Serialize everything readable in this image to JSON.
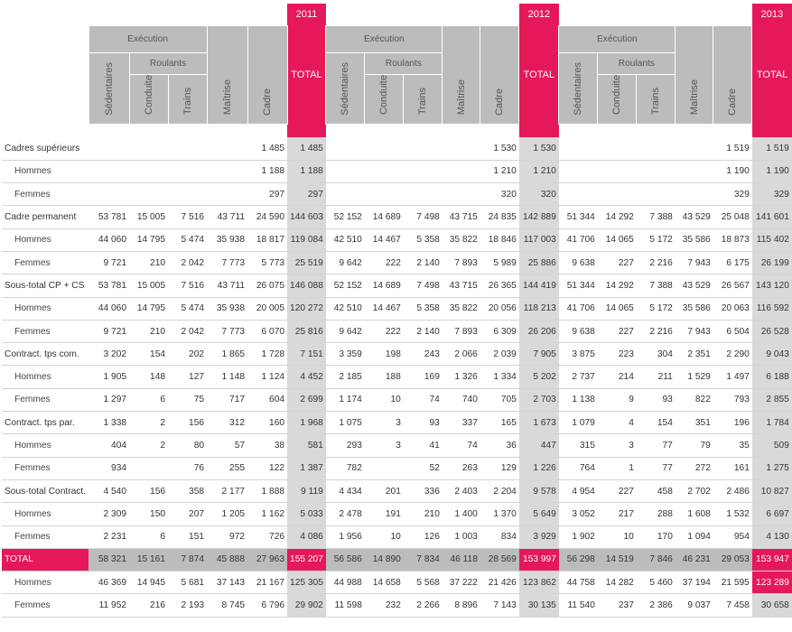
{
  "years": [
    "2011",
    "2012",
    "2013"
  ],
  "group_headers": {
    "execution": "Exécution",
    "roulants": "Roulants"
  },
  "columns": {
    "sedentaires": "Sédentaires",
    "conduite": "Conduite",
    "trains": "Trains",
    "maitrise": "Maîtrise",
    "cadre": "Cadre",
    "total": "TOTAL"
  },
  "rows": [
    {
      "label": "Cadres supérieurs",
      "sub": false,
      "cells": [
        "",
        "",
        "",
        "",
        "1 485",
        "1 485",
        "",
        "",
        "",
        "",
        "1 530",
        "1 530",
        "",
        "",
        "",
        "",
        "1 519",
        "1 519"
      ]
    },
    {
      "label": "Hommes",
      "sub": true,
      "cells": [
        "",
        "",
        "",
        "",
        "1 188",
        "1 188",
        "",
        "",
        "",
        "",
        "1 210",
        "1 210",
        "",
        "",
        "",
        "",
        "1 190",
        "1 190"
      ]
    },
    {
      "label": "Femmes",
      "sub": true,
      "cells": [
        "",
        "",
        "",
        "",
        "297",
        "297",
        "",
        "",
        "",
        "",
        "320",
        "320",
        "",
        "",
        "",
        "",
        "329",
        "329"
      ]
    },
    {
      "label": "Cadre permanent",
      "sub": false,
      "cells": [
        "53 781",
        "15 005",
        "7 516",
        "43 711",
        "24 590",
        "144 603",
        "52 152",
        "14 689",
        "7 498",
        "43 715",
        "24 835",
        "142 889",
        "51 344",
        "14 292",
        "7 388",
        "43 529",
        "25 048",
        "141 601"
      ]
    },
    {
      "label": "Hommes",
      "sub": true,
      "cells": [
        "44 060",
        "14 795",
        "5 474",
        "35 938",
        "18 817",
        "119 084",
        "42 510",
        "14 467",
        "5 358",
        "35 822",
        "18 846",
        "117 003",
        "41 706",
        "14 065",
        "5 172",
        "35 586",
        "18 873",
        "115 402"
      ]
    },
    {
      "label": "Femmes",
      "sub": true,
      "cells": [
        "9 721",
        "210",
        "2 042",
        "7 773",
        "5 773",
        "25 519",
        "9 642",
        "222",
        "2 140",
        "7 893",
        "5 989",
        "25 886",
        "9 638",
        "227",
        "2 216",
        "7 943",
        "6 175",
        "26 199"
      ]
    },
    {
      "label": "Sous-total CP + CS",
      "sub": false,
      "cells": [
        "53 781",
        "15 005",
        "7 516",
        "43 711",
        "26 075",
        "146 088",
        "52 152",
        "14 689",
        "7 498",
        "43 715",
        "26 365",
        "144 419",
        "51 344",
        "14 292",
        "7 388",
        "43 529",
        "26 567",
        "143 120"
      ]
    },
    {
      "label": "Hommes",
      "sub": true,
      "cells": [
        "44 060",
        "14 795",
        "5 474",
        "35 938",
        "20 005",
        "120 272",
        "42 510",
        "14 467",
        "5 358",
        "35 822",
        "20 056",
        "118 213",
        "41 706",
        "14 065",
        "5 172",
        "35 586",
        "20 063",
        "116 592"
      ]
    },
    {
      "label": "Femmes",
      "sub": true,
      "cells": [
        "9 721",
        "210",
        "2 042",
        "7 773",
        "6 070",
        "25 816",
        "9 642",
        "222",
        "2 140",
        "7 893",
        "6 309",
        "26 206",
        "9 638",
        "227",
        "2 216",
        "7 943",
        "6 504",
        "26 528"
      ]
    },
    {
      "label": "Contract. tps com.",
      "sub": false,
      "cells": [
        "3 202",
        "154",
        "202",
        "1 865",
        "1 728",
        "7 151",
        "3 359",
        "198",
        "243",
        "2 066",
        "2 039",
        "7 905",
        "3 875",
        "223",
        "304",
        "2 351",
        "2 290",
        "9 043"
      ]
    },
    {
      "label": "Hommes",
      "sub": true,
      "cells": [
        "1 905",
        "148",
        "127",
        "1 148",
        "1 124",
        "4 452",
        "2 185",
        "188",
        "169",
        "1 326",
        "1 334",
        "5 202",
        "2 737",
        "214",
        "211",
        "1 529",
        "1 497",
        "6 188"
      ]
    },
    {
      "label": "Femmes",
      "sub": true,
      "cells": [
        "1 297",
        "6",
        "75",
        "717",
        "604",
        "2 699",
        "1 174",
        "10",
        "74",
        "740",
        "705",
        "2 703",
        "1 138",
        "9",
        "93",
        "822",
        "793",
        "2 855"
      ]
    },
    {
      "label": "Contract. tps par.",
      "sub": false,
      "cells": [
        "1 338",
        "2",
        "156",
        "312",
        "160",
        "1 968",
        "1 075",
        "3",
        "93",
        "337",
        "165",
        "1 673",
        "1 079",
        "4",
        "154",
        "351",
        "196",
        "1 784"
      ]
    },
    {
      "label": "Hommes",
      "sub": true,
      "cells": [
        "404",
        "2",
        "80",
        "57",
        "38",
        "581",
        "293",
        "3",
        "41",
        "74",
        "36",
        "447",
        "315",
        "3",
        "77",
        "79",
        "35",
        "509"
      ]
    },
    {
      "label": "Femmes",
      "sub": true,
      "cells": [
        "934",
        "",
        "76",
        "255",
        "122",
        "1 387",
        "782",
        "",
        "52",
        "263",
        "129",
        "1 226",
        "764",
        "1",
        "77",
        "272",
        "161",
        "1 275"
      ]
    },
    {
      "label": "Sous-total Contract.",
      "sub": false,
      "cells": [
        "4 540",
        "156",
        "358",
        "2 177",
        "1 888",
        "9 119",
        "4 434",
        "201",
        "336",
        "2 403",
        "2 204",
        "9 578",
        "4 954",
        "227",
        "458",
        "2 702",
        "2 486",
        "10 827"
      ]
    },
    {
      "label": "Hommes",
      "sub": true,
      "cells": [
        "2 309",
        "150",
        "207",
        "1 205",
        "1 162",
        "5 033",
        "2 478",
        "191",
        "210",
        "1 400",
        "1 370",
        "5 649",
        "3 052",
        "217",
        "288",
        "1 608",
        "1 532",
        "6 697"
      ]
    },
    {
      "label": "Femmes",
      "sub": true,
      "cells": [
        "2 231",
        "6",
        "151",
        "972",
        "726",
        "4 086",
        "1 956",
        "10",
        "126",
        "1 003",
        "834",
        "3 929",
        "1 902",
        "10",
        "170",
        "1 094",
        "954",
        "4 130"
      ]
    },
    {
      "label": "TOTAL",
      "sub": false,
      "total": true,
      "cells": [
        "58 321",
        "15 161",
        "7 874",
        "45 888",
        "27 963",
        "155 207",
        "56 586",
        "14 890",
        "7 834",
        "46 118",
        "28 569",
        "153 997",
        "56 298",
        "14 519",
        "7 846",
        "46 231",
        "29 053",
        "153 947"
      ]
    },
    {
      "label": "Hommes",
      "sub": true,
      "cells": [
        "46 369",
        "14 945",
        "5 681",
        "37 143",
        "21 167",
        "125 305",
        "44 988",
        "14 658",
        "5 568",
        "37 222",
        "21 426",
        "123 862",
        "44 758",
        "14 282",
        "5 460",
        "37 194",
        "21 595",
        "123 289"
      ]
    },
    {
      "label": "Femmes",
      "sub": true,
      "cells": [
        "11 952",
        "216",
        "2 193",
        "8 745",
        "6 796",
        "29 902",
        "11 598",
        "232",
        "2 266",
        "8 896",
        "7 143",
        "30 135",
        "11 540",
        "237",
        "2 386",
        "9 037",
        "7 458",
        "30 658"
      ]
    }
  ],
  "colors": {
    "accent": "#e5195a",
    "header_gray": "#bcbcbd",
    "total_gray": "#d9d9da"
  }
}
